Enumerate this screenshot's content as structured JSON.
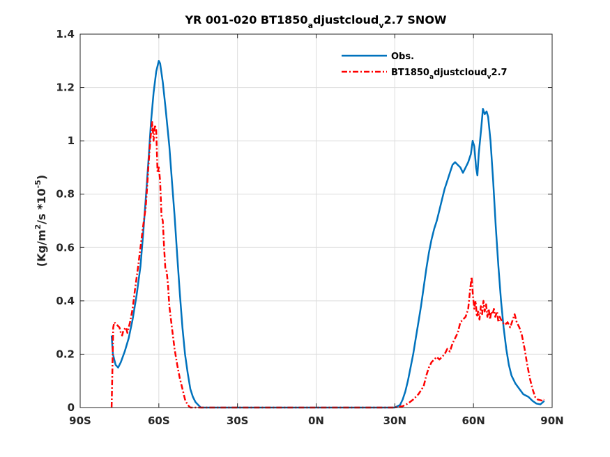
{
  "chart_data": {
    "type": "line",
    "title": {
      "prefix": "YR 001-020 BT1850",
      "sub1": "a",
      "mid": "djustcloud",
      "sub2": "v",
      "suffix": "2.7 SNOW"
    },
    "ylabel": {
      "prefix": "(Kg/m",
      "sup1": "2",
      "mid": "/s *10",
      "sup2": "-5",
      "suffix": ")"
    },
    "xlim": [
      -90,
      90
    ],
    "ylim": [
      0,
      1.4
    ],
    "xticks": [
      -90,
      -60,
      -30,
      0,
      30,
      60,
      90
    ],
    "xtick_labels": [
      "90S",
      "60S",
      "30S",
      "0N",
      "30N",
      "60N",
      "90N"
    ],
    "yticks": [
      0,
      0.2,
      0.4,
      0.6,
      0.8,
      1.0,
      1.2,
      1.4
    ],
    "ytick_labels": [
      "0",
      "0.2",
      "0.4",
      "0.6",
      "0.8",
      "1",
      "1.2",
      "1.4"
    ],
    "grid": true,
    "legend_position": "top-right",
    "series": [
      {
        "name": "Obs.",
        "color": "#0072BD",
        "dash": "solid",
        "points": [
          [
            -78,
            0.27
          ],
          [
            -77.5,
            0.2
          ],
          [
            -76.5,
            0.16
          ],
          [
            -75.5,
            0.15
          ],
          [
            -74.5,
            0.17
          ],
          [
            -73,
            0.21
          ],
          [
            -71.5,
            0.26
          ],
          [
            -70,
            0.33
          ],
          [
            -68.5,
            0.42
          ],
          [
            -67,
            0.53
          ],
          [
            -66,
            0.65
          ],
          [
            -65,
            0.78
          ],
          [
            -64,
            0.92
          ],
          [
            -63,
            1.07
          ],
          [
            -62,
            1.18
          ],
          [
            -61,
            1.26
          ],
          [
            -60,
            1.3
          ],
          [
            -59.5,
            1.29
          ],
          [
            -58.5,
            1.22
          ],
          [
            -57.5,
            1.13
          ],
          [
            -56,
            0.98
          ],
          [
            -55,
            0.85
          ],
          [
            -54,
            0.72
          ],
          [
            -53,
            0.57
          ],
          [
            -52,
            0.43
          ],
          [
            -51,
            0.3
          ],
          [
            -50,
            0.2
          ],
          [
            -49,
            0.13
          ],
          [
            -48,
            0.07
          ],
          [
            -47,
            0.04
          ],
          [
            -46,
            0.02
          ],
          [
            -45,
            0.01
          ],
          [
            -44,
            0.0
          ],
          [
            -40,
            0.0
          ],
          [
            -30,
            0.0
          ],
          [
            -20,
            0.0
          ],
          [
            -10,
            0.0
          ],
          [
            0,
            0.0
          ],
          [
            10,
            0.0
          ],
          [
            20,
            0.0
          ],
          [
            28,
            0.0
          ],
          [
            30,
            0.0
          ],
          [
            31,
            0.005
          ],
          [
            32,
            0.01
          ],
          [
            33,
            0.03
          ],
          [
            34,
            0.06
          ],
          [
            35,
            0.1
          ],
          [
            36,
            0.15
          ],
          [
            37,
            0.2
          ],
          [
            38,
            0.26
          ],
          [
            39,
            0.32
          ],
          [
            40,
            0.38
          ],
          [
            41,
            0.45
          ],
          [
            42,
            0.52
          ],
          [
            43,
            0.58
          ],
          [
            44,
            0.63
          ],
          [
            45,
            0.67
          ],
          [
            46,
            0.7
          ],
          [
            47,
            0.74
          ],
          [
            48,
            0.78
          ],
          [
            49,
            0.82
          ],
          [
            50,
            0.85
          ],
          [
            51,
            0.88
          ],
          [
            52,
            0.91
          ],
          [
            53,
            0.92
          ],
          [
            54,
            0.91
          ],
          [
            55,
            0.9
          ],
          [
            56,
            0.88
          ],
          [
            57,
            0.9
          ],
          [
            58,
            0.92
          ],
          [
            59,
            0.95
          ],
          [
            59.7,
            1.0
          ],
          [
            60.3,
            0.98
          ],
          [
            61,
            0.9
          ],
          [
            61.5,
            0.87
          ],
          [
            62,
            0.95
          ],
          [
            63,
            1.05
          ],
          [
            63.6,
            1.12
          ],
          [
            64.3,
            1.1
          ],
          [
            65,
            1.11
          ],
          [
            65.6,
            1.09
          ],
          [
            66.5,
            1.0
          ],
          [
            67.5,
            0.85
          ],
          [
            68.5,
            0.68
          ],
          [
            69.5,
            0.53
          ],
          [
            70.5,
            0.4
          ],
          [
            71.5,
            0.3
          ],
          [
            72.5,
            0.22
          ],
          [
            73.5,
            0.16
          ],
          [
            74.5,
            0.12
          ],
          [
            76,
            0.09
          ],
          [
            77.5,
            0.07
          ],
          [
            79,
            0.05
          ],
          [
            81,
            0.04
          ],
          [
            82.5,
            0.025
          ],
          [
            84,
            0.015
          ],
          [
            85.5,
            0.012
          ],
          [
            86.5,
            0.02
          ],
          [
            87,
            0.025
          ]
        ]
      },
      {
        "name": {
          "prefix": "BT1850",
          "sub1": "a",
          "mid": "djustcloud",
          "sub2": "v",
          "suffix": "2.7"
        },
        "color": "#FF0000",
        "dash": "dashdot",
        "points": [
          [
            -78,
            0.0
          ],
          [
            -77.7,
            0.15
          ],
          [
            -77.4,
            0.3
          ],
          [
            -77,
            0.32
          ],
          [
            -76,
            0.31
          ],
          [
            -75,
            0.3
          ],
          [
            -74.5,
            0.28
          ],
          [
            -74,
            0.27
          ],
          [
            -73.5,
            0.29
          ],
          [
            -72.5,
            0.3
          ],
          [
            -72,
            0.28
          ],
          [
            -71,
            0.32
          ],
          [
            -70,
            0.37
          ],
          [
            -69,
            0.45
          ],
          [
            -68,
            0.52
          ],
          [
            -67,
            0.6
          ],
          [
            -66,
            0.68
          ],
          [
            -65,
            0.75
          ],
          [
            -64.5,
            0.82
          ],
          [
            -64,
            0.9
          ],
          [
            -63.5,
            0.97
          ],
          [
            -63,
            1.03
          ],
          [
            -62.5,
            1.07
          ],
          [
            -62,
            1.0
          ],
          [
            -61.5,
            1.06
          ],
          [
            -61,
            1.04
          ],
          [
            -60.5,
            0.88
          ],
          [
            -60,
            0.9
          ],
          [
            -59.5,
            0.85
          ],
          [
            -59,
            0.72
          ],
          [
            -58.5,
            0.7
          ],
          [
            -58,
            0.6
          ],
          [
            -57.5,
            0.52
          ],
          [
            -57,
            0.51
          ],
          [
            -56.5,
            0.46
          ],
          [
            -56,
            0.38
          ],
          [
            -55,
            0.3
          ],
          [
            -54,
            0.22
          ],
          [
            -53,
            0.16
          ],
          [
            -52,
            0.11
          ],
          [
            -51,
            0.07
          ],
          [
            -50,
            0.03
          ],
          [
            -49,
            0.01
          ],
          [
            -48,
            0.0
          ],
          [
            -40,
            0.0
          ],
          [
            -30,
            0.0
          ],
          [
            -20,
            0.0
          ],
          [
            -10,
            0.0
          ],
          [
            0,
            0.0
          ],
          [
            10,
            0.0
          ],
          [
            20,
            0.0
          ],
          [
            30,
            0.0
          ],
          [
            33,
            0.005
          ],
          [
            35,
            0.015
          ],
          [
            37,
            0.03
          ],
          [
            39,
            0.05
          ],
          [
            41,
            0.08
          ],
          [
            42,
            0.12
          ],
          [
            43,
            0.15
          ],
          [
            44,
            0.17
          ],
          [
            45,
            0.18
          ],
          [
            46,
            0.19
          ],
          [
            47,
            0.18
          ],
          [
            48,
            0.19
          ],
          [
            49,
            0.2
          ],
          [
            50,
            0.22
          ],
          [
            51,
            0.21
          ],
          [
            52,
            0.24
          ],
          [
            53,
            0.26
          ],
          [
            54,
            0.28
          ],
          [
            55,
            0.32
          ],
          [
            56,
            0.33
          ],
          [
            57,
            0.34
          ],
          [
            58,
            0.37
          ],
          [
            58.8,
            0.45
          ],
          [
            59.3,
            0.49
          ],
          [
            59.8,
            0.42
          ],
          [
            60.3,
            0.37
          ],
          [
            60.8,
            0.4
          ],
          [
            61.3,
            0.34
          ],
          [
            61.8,
            0.36
          ],
          [
            62.3,
            0.33
          ],
          [
            62.8,
            0.38
          ],
          [
            63.3,
            0.35
          ],
          [
            63.8,
            0.4
          ],
          [
            64.3,
            0.36
          ],
          [
            64.8,
            0.39
          ],
          [
            65.3,
            0.34
          ],
          [
            65.8,
            0.37
          ],
          [
            66.3,
            0.33
          ],
          [
            66.8,
            0.36
          ],
          [
            67.3,
            0.35
          ],
          [
            67.8,
            0.37
          ],
          [
            68.3,
            0.34
          ],
          [
            69,
            0.36
          ],
          [
            69.5,
            0.32
          ],
          [
            70,
            0.34
          ],
          [
            71,
            0.32
          ],
          [
            72,
            0.31
          ],
          [
            73,
            0.32
          ],
          [
            74,
            0.3
          ],
          [
            75,
            0.33
          ],
          [
            75.7,
            0.35
          ],
          [
            76.5,
            0.32
          ],
          [
            77.5,
            0.3
          ],
          [
            78.5,
            0.27
          ],
          [
            79.5,
            0.22
          ],
          [
            80.5,
            0.16
          ],
          [
            81.5,
            0.11
          ],
          [
            82.5,
            0.07
          ],
          [
            83.5,
            0.04
          ],
          [
            84.5,
            0.03
          ],
          [
            86.5,
            0.025
          ],
          [
            87,
            0.03
          ]
        ]
      }
    ]
  }
}
